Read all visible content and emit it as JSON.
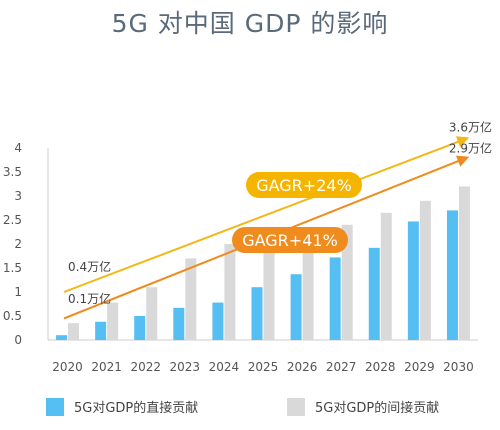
{
  "title": "5G 对中国 GDP 的影响",
  "chart_data": {
    "type": "bar",
    "categories": [
      "2020",
      "2021",
      "2022",
      "2023",
      "2024",
      "2025",
      "2026",
      "2027",
      "2028",
      "2029",
      "2030"
    ],
    "series": [
      {
        "name": "5G对GDP的直接贡献",
        "color": "#55bff3",
        "values": [
          0.1,
          0.38,
          0.5,
          0.67,
          0.78,
          1.1,
          1.37,
          1.72,
          1.92,
          2.47,
          2.7
        ]
      },
      {
        "name": "5G对GDP的间接贡献",
        "color": "#d9d9d9",
        "values": [
          0.35,
          0.78,
          1.1,
          1.7,
          2.0,
          2.05,
          2.0,
          2.4,
          2.65,
          2.9,
          3.2
        ]
      }
    ],
    "ylim": [
      0,
      4
    ],
    "yticks": [
      "0",
      "0.5",
      "1",
      "1.5",
      "2",
      "2.5",
      "3",
      "3.5",
      "4"
    ],
    "trend_lines": [
      {
        "color": "#f2b718",
        "start": 1.0,
        "end": 4.2,
        "start_label": "0.4万亿",
        "end_label": "3.6万亿",
        "badge": "GAGR+24%",
        "badge_color": "#f5b400"
      },
      {
        "color": "#f08a1c",
        "start": 0.45,
        "end": 3.8,
        "start_label": "0.1万亿",
        "end_label": "2.9万亿",
        "badge": "GAGR+41%",
        "badge_color": "#f08c1e"
      }
    ]
  }
}
